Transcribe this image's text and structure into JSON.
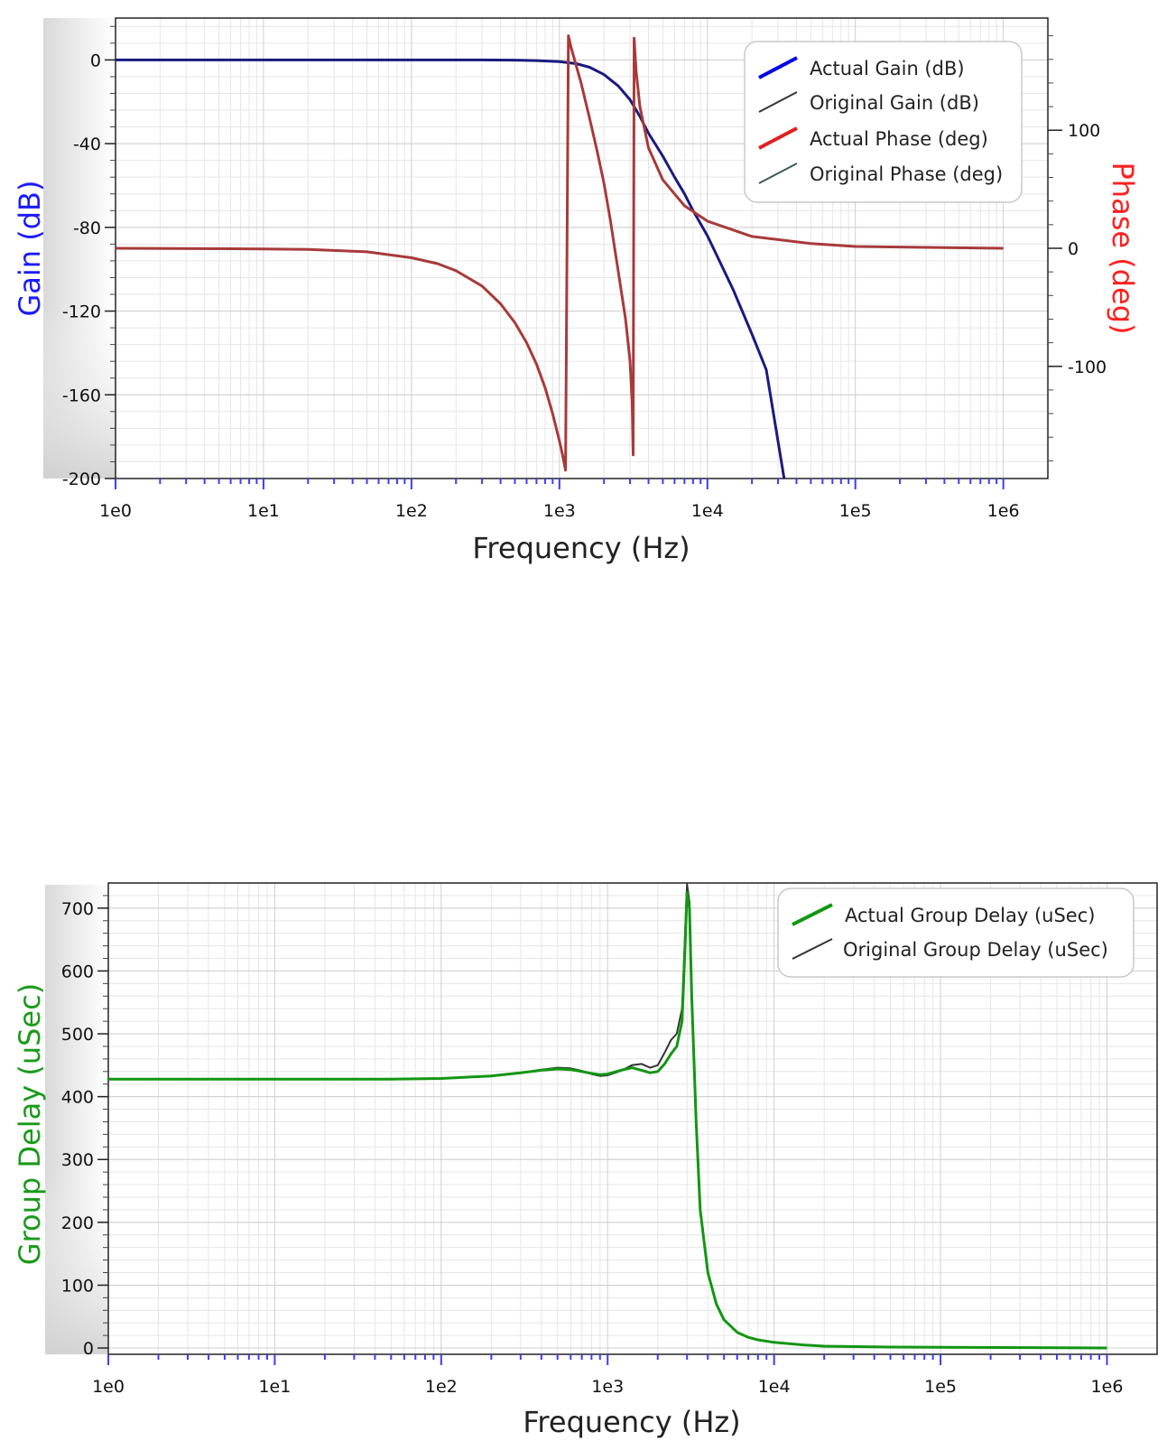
{
  "chart_data": [
    {
      "type": "line",
      "x_scale": "log",
      "xlabel": "Frequency (Hz)",
      "ylabel": "Gain (dB)",
      "y2label": "Phase (deg)",
      "xlim": [
        1,
        2000000
      ],
      "ylim": [
        -200,
        20
      ],
      "y2lim": [
        -195,
        195
      ],
      "x_ticks": [
        1,
        10,
        100,
        1000,
        10000,
        100000,
        1000000
      ],
      "x_tick_labels": [
        "1e0",
        "1e1",
        "1e2",
        "1e3",
        "1e4",
        "1e5",
        "1e6"
      ],
      "y_ticks": [
        0,
        -40,
        -80,
        -120,
        -160,
        -200
      ],
      "y_tick_labels": [
        "0",
        "-40",
        "-80",
        "-120",
        "-160",
        "-200"
      ],
      "y2_ticks": [
        100,
        0,
        -100
      ],
      "y2_tick_labels": [
        "100",
        "0",
        "-100"
      ],
      "grid": true,
      "legend_position": "top-right",
      "colors": {
        "gain_axis": "#1a1aff",
        "phase_axis": "#ff2020",
        "actual_gain": "#0000e6",
        "original_gain": "#333333",
        "actual_phase": "#e02020",
        "original_phase": "#3a5a5a",
        "phase_drawn": "#a83a3a",
        "gain_drawn": "#1a1a80"
      },
      "series": [
        {
          "name": "Actual Gain (dB)",
          "axis": "left",
          "x": [
            1,
            10,
            100,
            200,
            300,
            500,
            700,
            1000,
            1300,
            1600,
            2000,
            2500,
            3000,
            3500,
            4000,
            5000,
            6000,
            7000,
            8000,
            10000,
            15000,
            20000,
            25000,
            33000
          ],
          "y": [
            0,
            0,
            0,
            0,
            0,
            -0.1,
            -0.3,
            -0.8,
            -1.8,
            -3.5,
            -7,
            -12.5,
            -19,
            -27,
            -35,
            -46,
            -56,
            -64,
            -72,
            -84,
            -110,
            -131,
            -148,
            -200
          ]
        },
        {
          "name": "Original Gain (dB)",
          "axis": "left",
          "x": [
            1,
            10,
            100,
            200,
            300,
            500,
            700,
            1000,
            1300,
            1600,
            2000,
            2500,
            3000,
            3500,
            4000,
            5000,
            6000,
            7000,
            8000,
            10000,
            15000,
            20000,
            25000,
            33000
          ],
          "y": [
            0,
            0,
            0,
            0,
            0,
            -0.1,
            -0.3,
            -0.8,
            -1.8,
            -3.5,
            -7,
            -12.5,
            -19,
            -27,
            -35,
            -46,
            -56,
            -64,
            -72,
            -84,
            -110,
            -131,
            -148,
            -200
          ]
        },
        {
          "name": "Actual Phase (deg)",
          "axis": "right",
          "x": [
            1,
            10,
            20,
            50,
            100,
            150,
            200,
            300,
            400,
            500,
            600,
            700,
            800,
            900,
            1000,
            1050,
            1100,
            1150,
            1200,
            1400,
            1600,
            1800,
            2000,
            2200,
            2500,
            2800,
            3000,
            3100,
            3150,
            3200,
            3300,
            3500,
            4000,
            5000,
            7000,
            10000,
            20000,
            50000,
            100000,
            1000000
          ],
          "y": [
            0,
            -0.5,
            -1,
            -3,
            -8,
            -13,
            -19,
            -32,
            -47,
            -63,
            -80,
            -98,
            -118,
            -140,
            -163,
            -175,
            -188,
            180,
            170,
            140,
            110,
            82,
            55,
            25,
            -20,
            -60,
            -95,
            -130,
            -175,
            178,
            150,
            120,
            85,
            58,
            36,
            23,
            10,
            4,
            1.5,
            0
          ]
        },
        {
          "name": "Original Phase (deg)",
          "axis": "right",
          "x": [
            1,
            10,
            20,
            50,
            100,
            150,
            200,
            300,
            400,
            500,
            600,
            700,
            800,
            900,
            1000,
            1050,
            1100,
            1150,
            1200,
            1400,
            1600,
            1800,
            2000,
            2200,
            2500,
            2800,
            3000,
            3100,
            3150,
            3200,
            3300,
            3500,
            4000,
            5000,
            7000,
            10000,
            20000,
            50000,
            100000,
            1000000
          ],
          "y": [
            0,
            -0.5,
            -1,
            -3,
            -8,
            -13,
            -19,
            -32,
            -47,
            -63,
            -80,
            -98,
            -118,
            -140,
            -163,
            -175,
            -188,
            180,
            170,
            140,
            110,
            82,
            55,
            25,
            -20,
            -60,
            -95,
            -130,
            -175,
            178,
            150,
            120,
            85,
            58,
            36,
            23,
            10,
            4,
            1.5,
            0
          ]
        }
      ]
    },
    {
      "type": "line",
      "x_scale": "log",
      "xlabel": "Frequency (Hz)",
      "ylabel": "Group Delay (uSec)",
      "xlim": [
        1,
        2000000
      ],
      "ylim": [
        -10,
        740
      ],
      "x_ticks": [
        1,
        10,
        100,
        1000,
        10000,
        100000,
        1000000
      ],
      "x_tick_labels": [
        "1e0",
        "1e1",
        "1e2",
        "1e3",
        "1e4",
        "1e5",
        "1e6"
      ],
      "y_ticks": [
        700,
        600,
        500,
        400,
        300,
        200,
        100,
        0
      ],
      "y_tick_labels": [
        "700",
        "600",
        "500",
        "400",
        "300",
        "200",
        "100",
        "0"
      ],
      "grid": true,
      "legend_position": "top-right",
      "colors": {
        "axis_title": "#1a9a1a",
        "actual": "#129612",
        "original": "#333333"
      },
      "series": [
        {
          "name": "Actual Group Delay (uSec)",
          "x": [
            1,
            10,
            50,
            100,
            200,
            300,
            400,
            500,
            600,
            700,
            800,
            900,
            1000,
            1200,
            1400,
            1600,
            1800,
            2000,
            2200,
            2400,
            2600,
            2800,
            2900,
            3000,
            3100,
            3200,
            3400,
            3600,
            4000,
            4500,
            5000,
            6000,
            7000,
            8000,
            10000,
            15000,
            20000,
            50000,
            100000,
            1000000
          ],
          "y": [
            428,
            428,
            428,
            429,
            433,
            438,
            442,
            444,
            443,
            440,
            437,
            435,
            436,
            442,
            446,
            442,
            438,
            440,
            452,
            468,
            480,
            520,
            620,
            725,
            700,
            560,
            360,
            220,
            120,
            70,
            45,
            25,
            17,
            13,
            9,
            5,
            3,
            1.5,
            1,
            0
          ]
        },
        {
          "name": "Original Group Delay (uSec)",
          "x": [
            1,
            10,
            50,
            100,
            200,
            300,
            400,
            500,
            600,
            700,
            800,
            900,
            1000,
            1200,
            1400,
            1600,
            1800,
            2000,
            2200,
            2400,
            2600,
            2800,
            2900,
            3000,
            3100,
            3200,
            3400,
            3600,
            4000,
            4500,
            5000,
            6000,
            7000,
            8000,
            10000,
            15000,
            20000,
            50000,
            100000,
            1000000
          ],
          "y": [
            428,
            428,
            428,
            429,
            433,
            438,
            443,
            446,
            445,
            441,
            436,
            433,
            434,
            441,
            450,
            452,
            446,
            450,
            470,
            490,
            500,
            540,
            640,
            738,
            710,
            565,
            360,
            220,
            120,
            70,
            45,
            25,
            17,
            13,
            9,
            5,
            3,
            1.5,
            1,
            0
          ]
        }
      ]
    }
  ]
}
